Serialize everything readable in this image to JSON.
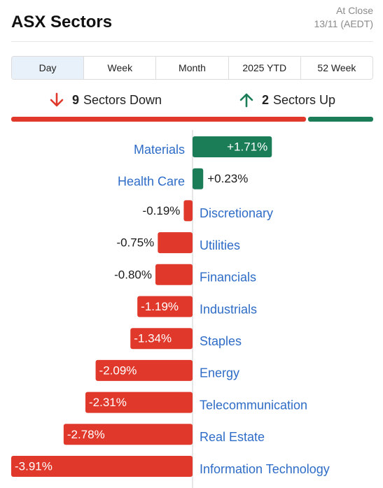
{
  "header": {
    "title": "ASX Sectors",
    "status": "At Close",
    "date": "13/11 (AEDT)"
  },
  "tabs": [
    {
      "label": "Day",
      "active": true
    },
    {
      "label": "Week",
      "active": false
    },
    {
      "label": "Month",
      "active": false
    },
    {
      "label": "2025 YTD",
      "active": false
    },
    {
      "label": "52 Week",
      "active": false
    }
  ],
  "summary": {
    "down_count": "9",
    "down_label": "Sectors Down",
    "up_count": "2",
    "up_label": "Sectors Up"
  },
  "colors": {
    "positive": "#1b7d58",
    "negative": "#e0392b",
    "link": "#2e6cc7"
  },
  "chart_data": {
    "type": "bar",
    "orientation": "horizontal-diverging",
    "categories": [
      "Materials",
      "Health Care",
      "Discretionary",
      "Utilities",
      "Financials",
      "Industrials",
      "Staples",
      "Energy",
      "Telecommunication",
      "Real Estate",
      "Information Technology"
    ],
    "values": [
      1.71,
      0.23,
      -0.19,
      -0.75,
      -0.8,
      -1.19,
      -1.34,
      -2.09,
      -2.31,
      -2.78,
      -3.91
    ],
    "labels": [
      "+1.71%",
      "+0.23%",
      "-0.19%",
      "-0.75%",
      "-0.80%",
      "-1.19%",
      "-1.34%",
      "-2.09%",
      "-2.31%",
      "-2.78%",
      "-3.91%"
    ],
    "unit": "%"
  }
}
